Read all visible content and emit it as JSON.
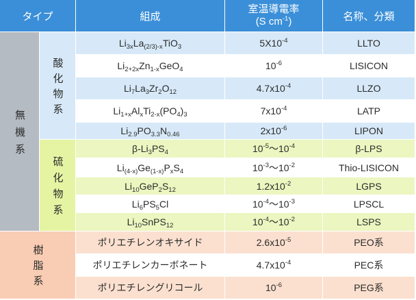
{
  "header": {
    "type": "タイプ",
    "composition": "組成",
    "conductivity_title": "室温導電率",
    "conductivity_unit": [
      {
        "text": "(S cm"
      },
      {
        "sup": "-1"
      },
      {
        "text": ")"
      }
    ],
    "name": "名称、分類"
  },
  "categories": {
    "inorganic": "無機系",
    "oxide": "酸化物系",
    "sulfide": "硫化物系",
    "resin": "樹脂系"
  },
  "rows": [
    {
      "composition": [
        {
          "text": "Li"
        },
        {
          "sub": "3x"
        },
        {
          "text": "La"
        },
        {
          "sub": "(2/3)-x"
        },
        {
          "text": "TiO"
        },
        {
          "sub": "3"
        }
      ],
      "conductivity": [
        {
          "text": "5X10"
        },
        {
          "sup": "-4"
        }
      ],
      "name": "LLTO"
    },
    {
      "composition": [
        {
          "text": "Li"
        },
        {
          "sub": "2+2x"
        },
        {
          "text": "Zn"
        },
        {
          "sub": "1-x"
        },
        {
          "text": "GeO"
        },
        {
          "sub": "4"
        }
      ],
      "conductivity": [
        {
          "text": "10"
        },
        {
          "sup": "-6"
        }
      ],
      "name": "LISICON"
    },
    {
      "composition": [
        {
          "text": "Li"
        },
        {
          "sub": "7"
        },
        {
          "text": "La"
        },
        {
          "sub": "3"
        },
        {
          "text": "Zr"
        },
        {
          "sub": "2"
        },
        {
          "text": "O"
        },
        {
          "sub": "12"
        }
      ],
      "conductivity": [
        {
          "text": "4.7x10"
        },
        {
          "sup": "-4"
        }
      ],
      "name": "LLZO"
    },
    {
      "composition": [
        {
          "text": "Li"
        },
        {
          "sub": "1+x"
        },
        {
          "text": "Al"
        },
        {
          "sub": "x"
        },
        {
          "text": "Ti"
        },
        {
          "sub": "2-x"
        },
        {
          "text": "(PO"
        },
        {
          "sub": "4"
        },
        {
          "text": ")"
        },
        {
          "sub": "3"
        }
      ],
      "conductivity": [
        {
          "text": "7x10"
        },
        {
          "sup": "-4"
        }
      ],
      "name": "LATP"
    },
    {
      "composition": [
        {
          "text": "Li"
        },
        {
          "sub": "2.9"
        },
        {
          "text": "PO"
        },
        {
          "sub": "3.3"
        },
        {
          "text": "N"
        },
        {
          "sub": "0.46"
        }
      ],
      "conductivity": [
        {
          "text": "2x10"
        },
        {
          "sup": "-6"
        }
      ],
      "name": "LIPON"
    },
    {
      "composition": [
        {
          "text": "β-Li"
        },
        {
          "sub": "3"
        },
        {
          "text": "PS"
        },
        {
          "sub": "4"
        }
      ],
      "conductivity": [
        {
          "text": "10"
        },
        {
          "sup": "-5"
        },
        {
          "text": "～10"
        },
        {
          "sup": "-4"
        }
      ],
      "name": "β-LPS"
    },
    {
      "composition": [
        {
          "text": "Li"
        },
        {
          "sub": "(4-x)"
        },
        {
          "text": "Ge"
        },
        {
          "sub": "(1-x)"
        },
        {
          "text": "P"
        },
        {
          "sub": "x"
        },
        {
          "text": "S"
        },
        {
          "sub": "4"
        }
      ],
      "conductivity": [
        {
          "text": "10"
        },
        {
          "sup": "-3"
        },
        {
          "text": "～10"
        },
        {
          "sup": "-2"
        }
      ],
      "name": "Thio-LISICON"
    },
    {
      "composition": [
        {
          "text": "Li"
        },
        {
          "sub": "10"
        },
        {
          "text": "GeP"
        },
        {
          "sub": "2"
        },
        {
          "text": "S"
        },
        {
          "sub": "12"
        }
      ],
      "conductivity": [
        {
          "text": "1.2x10"
        },
        {
          "sup": "-2"
        }
      ],
      "name": "LGPS"
    },
    {
      "composition": [
        {
          "text": "Li"
        },
        {
          "sub": "6"
        },
        {
          "text": "PS"
        },
        {
          "sub": "5"
        },
        {
          "text": "Cl"
        }
      ],
      "conductivity": [
        {
          "text": "10"
        },
        {
          "sup": "-4"
        },
        {
          "text": "～10"
        },
        {
          "sup": "-3"
        }
      ],
      "name": "LPSCL"
    },
    {
      "composition": [
        {
          "text": "Li"
        },
        {
          "sub": "10"
        },
        {
          "text": "SnPS"
        },
        {
          "sub": "12"
        }
      ],
      "conductivity": [
        {
          "text": "10"
        },
        {
          "sup": "-4"
        },
        {
          "text": "～10"
        },
        {
          "sup": "-2"
        }
      ],
      "name": "LSPS"
    },
    {
      "composition": "ポリエチレンオキサイド",
      "conductivity": [
        {
          "text": "2.6x10"
        },
        {
          "sup": "-5"
        }
      ],
      "name": "PEO系"
    },
    {
      "composition": "ポリエチレンカーボネート",
      "conductivity": [
        {
          "text": "4.7x10"
        },
        {
          "sup": "-4"
        }
      ],
      "name": "PEC系"
    },
    {
      "composition": "ポリエチレングリコール",
      "conductivity": [
        {
          "text": "10"
        },
        {
          "sup": "-6"
        }
      ],
      "name": "PEG系"
    }
  ],
  "colors": {
    "header_bg": "#3b8fd8",
    "header_text": "#ffffff",
    "inorganic_bg": "#b5bbc2",
    "oxide_bg": "#d7e9f8",
    "sulfide_bg": "#e5f4a2",
    "sulfide_row_bg": "#ebf6c0",
    "resin_bg": "#f9cdb4",
    "resin_row_bg": "#fbe0cf",
    "text": "#2b2b2b"
  }
}
